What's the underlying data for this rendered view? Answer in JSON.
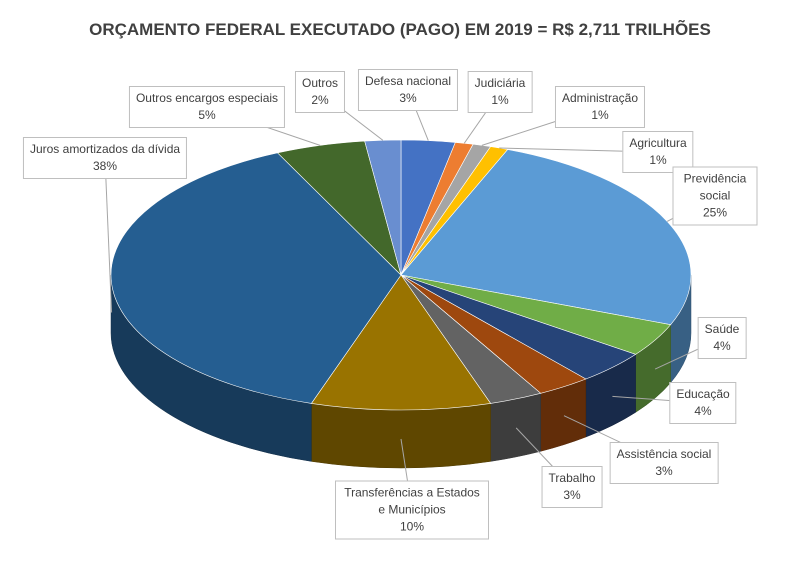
{
  "chart_data": {
    "type": "pie3d",
    "title": "ORÇAMENTO FEDERAL EXECUTADO (PAGO) EM 2019 = R$ 2,711 TRILHÕES",
    "categories": [
      "Defesa nacional",
      "Judiciária",
      "Administração",
      "Agricultura",
      "Previdência social",
      "Saúde",
      "Educação",
      "Assistência social",
      "Trabalho",
      "Transferências a Estados e Municípios",
      "Juros amortizados da dívida",
      "Outros encargos especiais",
      "Outros"
    ],
    "values": [
      3,
      1,
      1,
      1,
      25,
      4,
      4,
      3,
      3,
      10,
      38,
      5,
      2
    ],
    "value_labels": [
      "3%",
      "1%",
      "1%",
      "1%",
      "25%",
      "4%",
      "4%",
      "3%",
      "3%",
      "10%",
      "38%",
      "5%",
      "2%"
    ],
    "colors": [
      "#4472c4",
      "#ed7d31",
      "#a5a5a5",
      "#ffc000",
      "#5b9bd5",
      "#70ad47",
      "#264478",
      "#9e480e",
      "#636363",
      "#997300",
      "#255e91",
      "#43682b",
      "#698ed0"
    ]
  }
}
